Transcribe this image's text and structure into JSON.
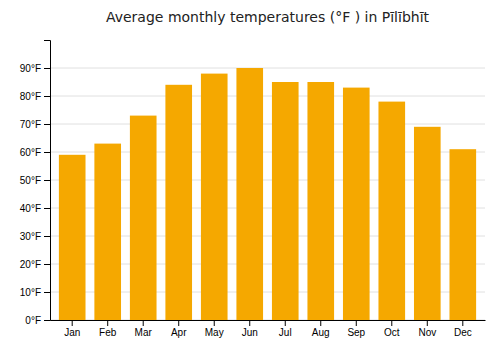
{
  "chart_data": {
    "type": "bar",
    "title": "Average monthly temperatures (°F ) in Pīlībhīt",
    "categories": [
      "Jan",
      "Feb",
      "Mar",
      "Apr",
      "May",
      "Jun",
      "Jul",
      "Aug",
      "Sep",
      "Oct",
      "Nov",
      "Dec"
    ],
    "values": [
      59,
      63,
      73,
      84,
      88,
      90,
      85,
      85,
      83,
      78,
      69,
      61
    ],
    "color": "#F5A800",
    "ylim": [
      0,
      100
    ],
    "yticks": [
      {
        "value": 0,
        "label": "0°F"
      },
      {
        "value": 10,
        "label": "10°F"
      },
      {
        "value": 20,
        "label": "20°F"
      },
      {
        "value": 30,
        "label": "30°F"
      },
      {
        "value": 40,
        "label": "40°F"
      },
      {
        "value": 50,
        "label": "50°F"
      },
      {
        "value": 60,
        "label": "60°F"
      },
      {
        "value": 70,
        "label": "70°F"
      },
      {
        "value": 80,
        "label": "80°F"
      },
      {
        "value": 90,
        "label": "90°F"
      }
    ],
    "grid": true
  }
}
